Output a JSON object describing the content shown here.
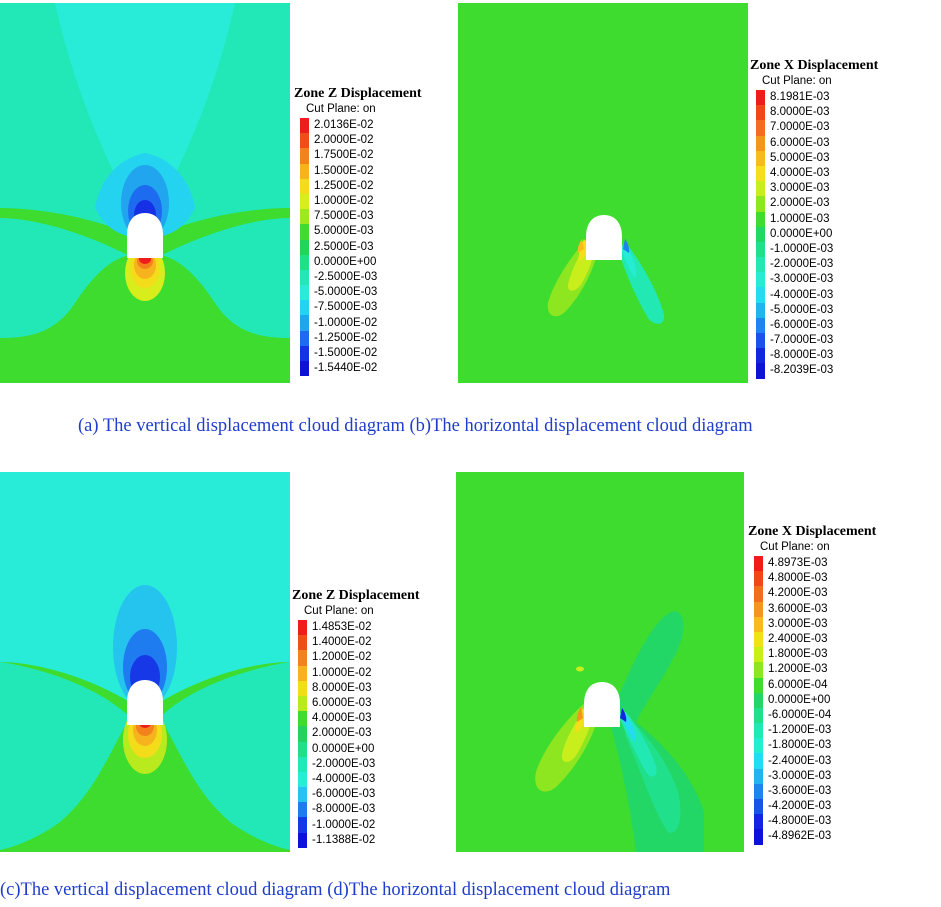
{
  "panels": [
    {
      "id": "a",
      "legend_title": "Zone Z Displacement",
      "legend_subtitle": "Cut Plane: on",
      "levels": [
        {
          "label": "2.0136E-02",
          "color": "#ee1c1c"
        },
        {
          "label": "2.0000E-02",
          "color": "#f04e18"
        },
        {
          "label": "1.7500E-02",
          "color": "#f3821c"
        },
        {
          "label": "1.5000E-02",
          "color": "#f6b31e"
        },
        {
          "label": "1.2500E-02",
          "color": "#f3dd1a"
        },
        {
          "label": "1.0000E-02",
          "color": "#d7ee1c"
        },
        {
          "label": "7.5000E-03",
          "color": "#9ee820"
        },
        {
          "label": "5.0000E-03",
          "color": "#3ddc2e"
        },
        {
          "label": "2.5000E-03",
          "color": "#22d35c"
        },
        {
          "label": "0.0000E+00",
          "color": "#20e087"
        },
        {
          "label": "-2.5000E-03",
          "color": "#22e8b8"
        },
        {
          "label": "-5.0000E-03",
          "color": "#28ecd8"
        },
        {
          "label": "-7.5000E-03",
          "color": "#24d3ef"
        },
        {
          "label": "-1.0000E-02",
          "color": "#22a5ef"
        },
        {
          "label": "-1.2500E-02",
          "color": "#1d6cf0"
        },
        {
          "label": "-1.5000E-02",
          "color": "#1630e6"
        },
        {
          "label": "-1.5440E-02",
          "color": "#0c12d6"
        }
      ]
    },
    {
      "id": "b",
      "legend_title": "Zone X Displacement",
      "legend_subtitle": "Cut Plane: on",
      "levels": [
        {
          "label": "8.1981E-03",
          "color": "#ee1c1c"
        },
        {
          "label": "8.0000E-03",
          "color": "#f04618"
        },
        {
          "label": "7.0000E-03",
          "color": "#f26e1c"
        },
        {
          "label": "6.0000E-03",
          "color": "#f4951e"
        },
        {
          "label": "5.0000E-03",
          "color": "#f6bc1e"
        },
        {
          "label": "4.0000E-03",
          "color": "#f3df1a"
        },
        {
          "label": "3.0000E-03",
          "color": "#c8ee1c"
        },
        {
          "label": "2.0000E-03",
          "color": "#8ee620"
        },
        {
          "label": "1.0000E-03",
          "color": "#3ddc2e"
        },
        {
          "label": "0.0000E+00",
          "color": "#22d765"
        },
        {
          "label": "-1.0000E-03",
          "color": "#20e08c"
        },
        {
          "label": "-2.0000E-03",
          "color": "#22e8b4"
        },
        {
          "label": "-3.0000E-03",
          "color": "#26ecd4"
        },
        {
          "label": "-4.0000E-03",
          "color": "#24dcef"
        },
        {
          "label": "-5.0000E-03",
          "color": "#22b4ef"
        },
        {
          "label": "-6.0000E-03",
          "color": "#1e84ef"
        },
        {
          "label": "-7.0000E-03",
          "color": "#1a52ea"
        },
        {
          "label": "-8.0000E-03",
          "color": "#1226e0"
        },
        {
          "label": "-8.2039E-03",
          "color": "#0c12d6"
        }
      ]
    },
    {
      "id": "c",
      "legend_title": "Zone Z Displacement",
      "legend_subtitle": "Cut Plane: on",
      "levels": [
        {
          "label": "1.4853E-02",
          "color": "#ee1c1c"
        },
        {
          "label": "1.4000E-02",
          "color": "#f04e18"
        },
        {
          "label": "1.2000E-02",
          "color": "#f3821c"
        },
        {
          "label": "1.0000E-02",
          "color": "#f6b31e"
        },
        {
          "label": "8.0000E-03",
          "color": "#f3dd1a"
        },
        {
          "label": "6.0000E-03",
          "color": "#b9ea1e"
        },
        {
          "label": "4.0000E-03",
          "color": "#3ddc2e"
        },
        {
          "label": "2.0000E-03",
          "color": "#22d35c"
        },
        {
          "label": "0.0000E+00",
          "color": "#20e087"
        },
        {
          "label": "-2.0000E-03",
          "color": "#22e8b8"
        },
        {
          "label": "-4.0000E-03",
          "color": "#28ecd8"
        },
        {
          "label": "-6.0000E-03",
          "color": "#24c4ef"
        },
        {
          "label": "-8.0000E-03",
          "color": "#1e7cf0"
        },
        {
          "label": "-1.0000E-02",
          "color": "#1638e6"
        },
        {
          "label": "-1.1388E-02",
          "color": "#0c12d6"
        }
      ]
    },
    {
      "id": "d",
      "legend_title": "Zone X Displacement",
      "legend_subtitle": "Cut Plane: on",
      "levels": [
        {
          "label": "4.8973E-03",
          "color": "#ee1c1c"
        },
        {
          "label": "4.8000E-03",
          "color": "#f04618"
        },
        {
          "label": "4.2000E-03",
          "color": "#f26e1c"
        },
        {
          "label": "3.6000E-03",
          "color": "#f4951e"
        },
        {
          "label": "3.0000E-03",
          "color": "#f6bc1e"
        },
        {
          "label": "2.4000E-03",
          "color": "#f3df1a"
        },
        {
          "label": "1.8000E-03",
          "color": "#c8ee1c"
        },
        {
          "label": "1.2000E-03",
          "color": "#8ee620"
        },
        {
          "label": "6.0000E-04",
          "color": "#3ddc2e"
        },
        {
          "label": "0.0000E+00",
          "color": "#22d765"
        },
        {
          "label": "-6.0000E-04",
          "color": "#20e08c"
        },
        {
          "label": "-1.2000E-03",
          "color": "#22e8b4"
        },
        {
          "label": "-1.8000E-03",
          "color": "#26ecd4"
        },
        {
          "label": "-2.4000E-03",
          "color": "#24dcef"
        },
        {
          "label": "-3.0000E-03",
          "color": "#22b4ef"
        },
        {
          "label": "-3.6000E-03",
          "color": "#1e84ef"
        },
        {
          "label": "-4.2000E-03",
          "color": "#1a52ea"
        },
        {
          "label": "-4.8000E-03",
          "color": "#1226e0"
        },
        {
          "label": "-4.8962E-03",
          "color": "#0c12d6"
        }
      ]
    }
  ],
  "captions": {
    "top": "(a) The vertical displacement cloud diagram (b)The horizontal displacement cloud diagram",
    "bottom": "(c)The vertical displacement cloud diagram (d)The horizontal displacement cloud diagram"
  },
  "colors": {
    "background_green": "#3ddc2e",
    "zone_cyan": "#28ecd8",
    "tunnel": "#ffffff",
    "caption": "#1f3dcc"
  }
}
